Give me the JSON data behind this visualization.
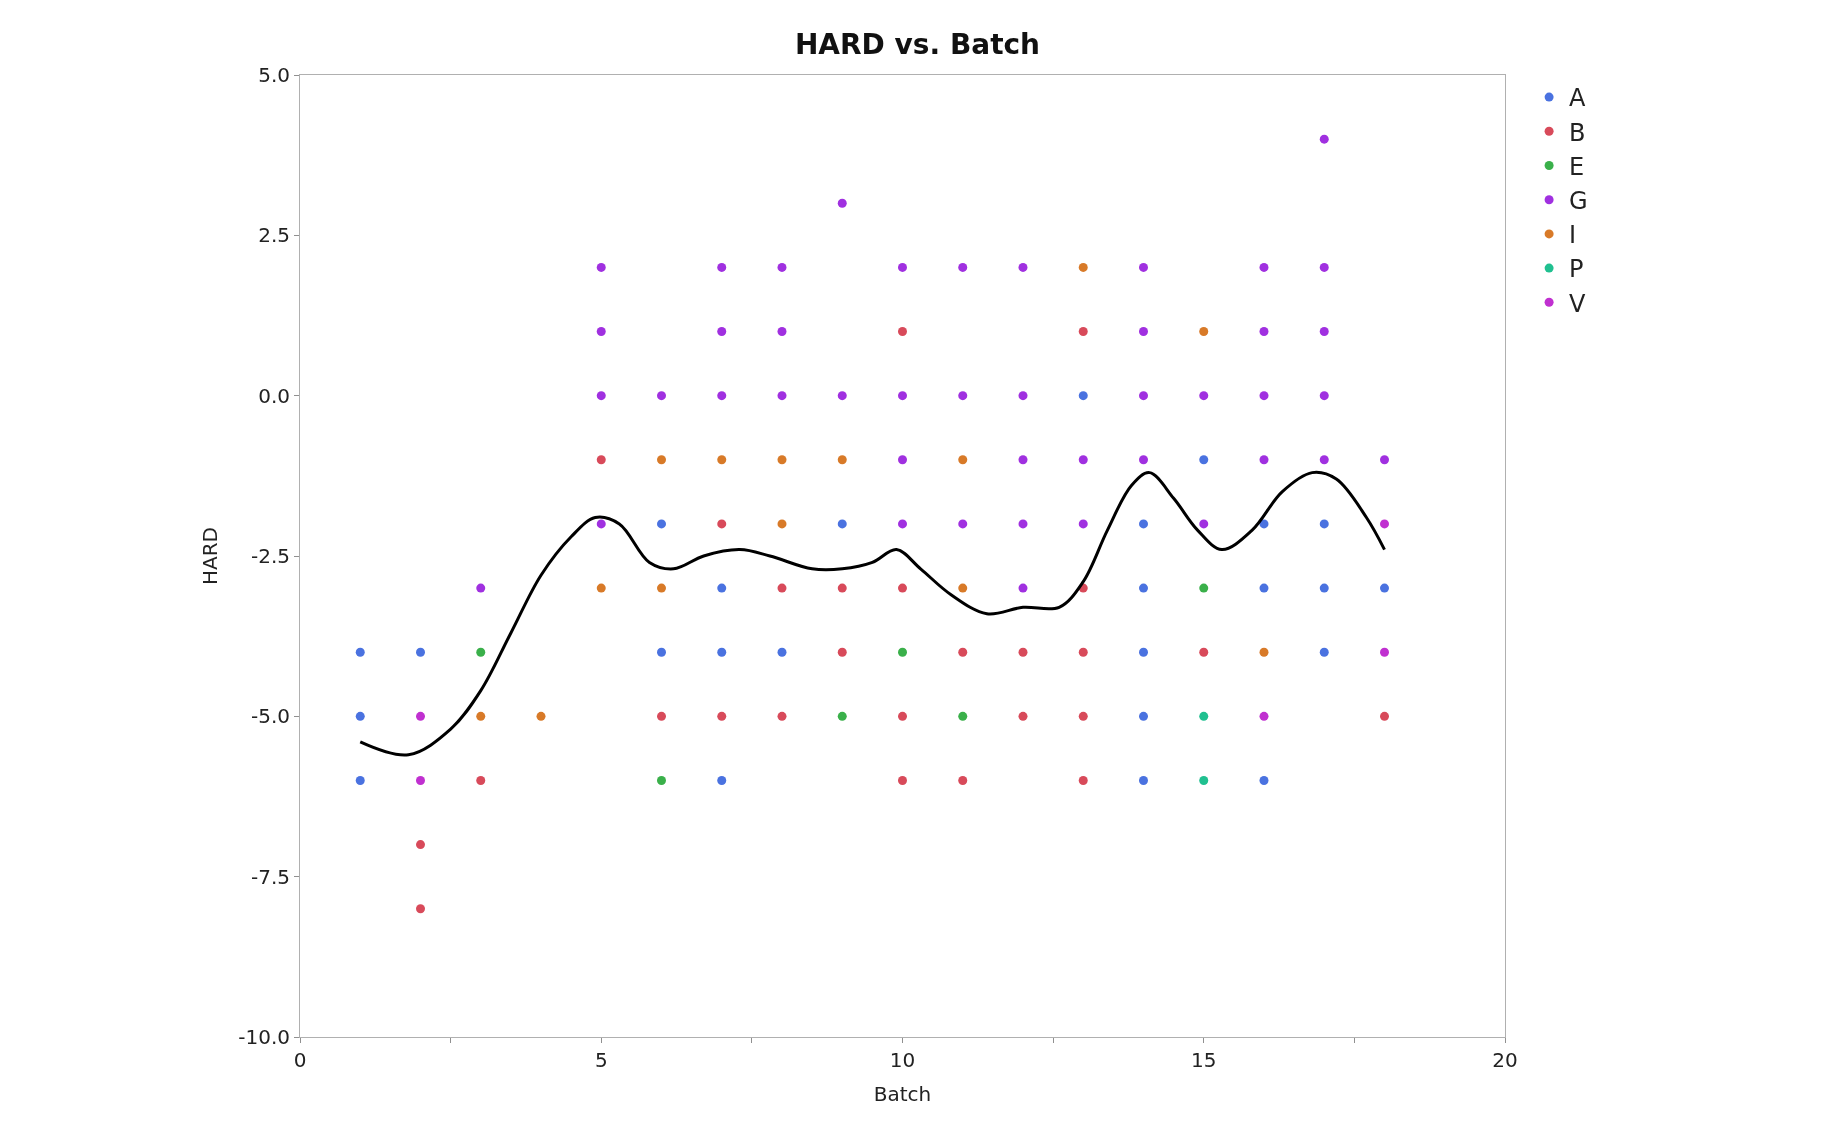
{
  "chart_data": {
    "type": "scatter",
    "title": "HARD vs. Batch",
    "xlabel": "Batch",
    "ylabel": "HARD",
    "xlim": [
      0,
      20
    ],
    "xticks": [
      0,
      {
        "value": 2.5,
        "label": null
      },
      5,
      {
        "value": 7.5,
        "label": null
      },
      10,
      {
        "value": 12.5,
        "label": null
      },
      15,
      {
        "value": 17.5,
        "label": null
      },
      20
    ],
    "ylim": [
      -10,
      5
    ],
    "yticks": [
      {
        "value": -10,
        "label": "-10.0"
      },
      {
        "value": -7.5,
        "label": "-7.5"
      },
      {
        "value": -5,
        "label": "-5.0"
      },
      {
        "value": -2.5,
        "label": "-2.5"
      },
      {
        "value": 0,
        "label": "0.0"
      },
      {
        "value": 2.5,
        "label": "2.5"
      },
      {
        "value": 5,
        "label": "5.0"
      }
    ],
    "legend": "top right",
    "marker": "circle",
    "series": [
      {
        "name": "A",
        "color": "#4a72e0",
        "x": [
          1,
          1,
          1,
          2,
          6,
          6,
          7,
          7,
          7,
          8,
          9,
          13,
          14,
          14,
          14,
          14,
          14,
          15,
          16,
          16,
          16,
          17,
          17,
          17,
          18
        ],
        "values": [
          -4,
          -5,
          -6,
          -4,
          -2,
          -4,
          -3,
          -4,
          -6,
          -4,
          -2,
          0,
          -2,
          -3,
          -4,
          -5,
          -6,
          -1,
          -2,
          -3,
          -6,
          -2,
          -3,
          -4,
          -3
        ]
      },
      {
        "name": "B",
        "color": "#d84a5a",
        "x": [
          2,
          2,
          3,
          5,
          6,
          7,
          7,
          8,
          8,
          9,
          9,
          10,
          10,
          10,
          10,
          11,
          11,
          12,
          12,
          13,
          13,
          13,
          13,
          13,
          15,
          18
        ],
        "values": [
          -7,
          -8,
          -6,
          -1,
          -5,
          -2,
          -5,
          -3,
          -5,
          -3,
          -4,
          1,
          -3,
          -5,
          -6,
          -4,
          -6,
          -4,
          -5,
          1,
          -3,
          -4,
          -5,
          -6,
          -4,
          -5
        ]
      },
      {
        "name": "E",
        "color": "#3ab04a",
        "x": [
          3,
          6,
          9,
          10,
          11,
          15
        ],
        "values": [
          -4,
          -6,
          -5,
          -4,
          -5,
          -3
        ]
      },
      {
        "name": "G",
        "color": "#a030e0",
        "x": [
          3,
          5,
          5,
          5,
          5,
          6,
          7,
          7,
          7,
          8,
          8,
          8,
          9,
          9,
          10,
          10,
          10,
          10,
          11,
          11,
          11,
          12,
          12,
          12,
          12,
          12,
          13,
          13,
          14,
          14,
          14,
          14,
          15,
          15,
          16,
          16,
          16,
          16,
          17,
          17,
          17,
          17,
          17,
          18
        ],
        "values": [
          -3,
          2,
          1,
          0,
          -2,
          0,
          2,
          1,
          0,
          2,
          1,
          0,
          3,
          0,
          2,
          0,
          -1,
          -2,
          2,
          0,
          -2,
          2,
          0,
          -1,
          -2,
          -3,
          -1,
          -2,
          2,
          1,
          0,
          -1,
          0,
          -2,
          2,
          1,
          0,
          -1,
          4,
          2,
          1,
          0,
          -1,
          -1
        ]
      },
      {
        "name": "I",
        "color": "#d87a28",
        "x": [
          3,
          4,
          5,
          6,
          6,
          7,
          8,
          8,
          9,
          11,
          11,
          13,
          15,
          16
        ],
        "values": [
          -5,
          -5,
          -3,
          -1,
          -3,
          -1,
          -1,
          -2,
          -1,
          -1,
          -3,
          2,
          1,
          -4
        ]
      },
      {
        "name": "P",
        "color": "#20c090",
        "x": [
          15,
          15
        ],
        "values": [
          -5,
          -6
        ]
      },
      {
        "name": "V",
        "color": "#c030d0",
        "x": [
          2,
          2,
          16,
          18,
          18
        ],
        "values": [
          -5,
          -6,
          -5,
          -2,
          -4
        ]
      },
      {
        "type": "line",
        "color": "#000000",
        "marker": "none",
        "x": [
          1.0,
          1.8,
          2.5,
          3.0,
          3.5,
          4.0,
          4.5,
          4.9,
          5.3,
          5.8,
          6.2,
          6.7,
          7.3,
          7.8,
          8.5,
          9.0,
          9.5,
          9.9,
          10.3,
          10.8,
          11.4,
          12.0,
          12.6,
          13.0,
          13.4,
          13.8,
          14.1,
          14.5,
          14.9,
          15.3,
          15.8,
          16.3,
          16.8,
          17.2,
          17.7,
          18.0
        ],
        "values": [
          -5.4,
          -5.6,
          -5.2,
          -4.6,
          -3.7,
          -2.8,
          -2.2,
          -1.9,
          -2.0,
          -2.6,
          -2.7,
          -2.5,
          -2.4,
          -2.5,
          -2.7,
          -2.7,
          -2.6,
          -2.4,
          -2.7,
          -3.1,
          -3.4,
          -3.3,
          -3.3,
          -2.9,
          -2.1,
          -1.4,
          -1.2,
          -1.6,
          -2.1,
          -2.4,
          -2.1,
          -1.5,
          -1.2,
          -1.3,
          -1.9,
          -2.4
        ]
      }
    ]
  }
}
